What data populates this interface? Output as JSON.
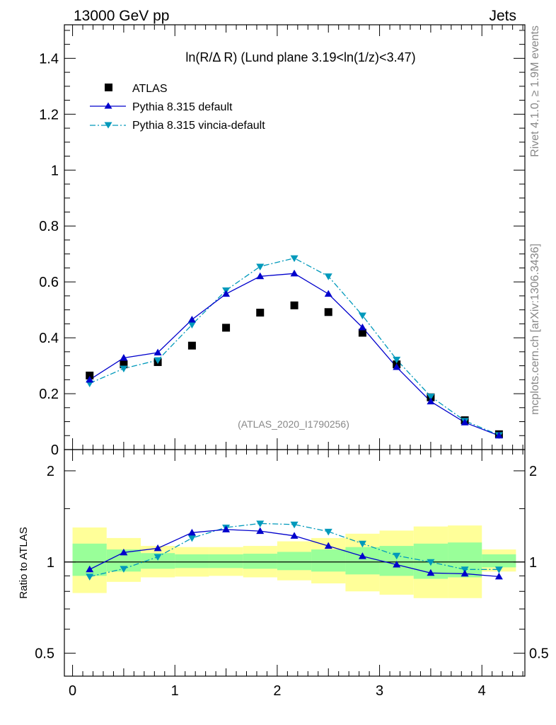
{
  "header": {
    "left_label": "13000 GeV pp",
    "right_label": "Jets"
  },
  "side_text": {
    "rivet": "Rivet 4.1.0, ≥ 1.9M events",
    "mcplots": "mcplots.cern.ch [arXiv:1306.3436]"
  },
  "colors": {
    "data": "#000000",
    "pythia_default": "#0000cc",
    "pythia_vincia": "#0099bb",
    "band_inner": "#99ff99",
    "band_outer": "#ffff99"
  },
  "chart_data": [
    {
      "type": "line",
      "panel": "main",
      "title": "ln(R/Δ R) (Lund plane 3.19<ln(1/z)<3.47)",
      "analysis_tag": "(ATLAS_2020_I1790256)",
      "xlabel": "",
      "ylabel": "",
      "xlim": [
        -0.08,
        4.42
      ],
      "ylim": [
        0,
        1.52
      ],
      "yticks": [
        0,
        0.2,
        0.4,
        0.6,
        0.8,
        1,
        1.2,
        1.4
      ],
      "ytick_labels": [
        "0",
        "0.2",
        "0.4",
        "0.6",
        "0.8",
        "1",
        "1.2",
        "1.4"
      ],
      "legend_position": "top-left",
      "x": [
        0.167,
        0.5,
        0.833,
        1.167,
        1.5,
        1.833,
        2.167,
        2.5,
        2.833,
        3.167,
        3.5,
        3.833,
        4.167
      ],
      "series": [
        {
          "name": "ATLAS",
          "style": "markers",
          "values": [
            0.265,
            0.305,
            0.313,
            0.372,
            0.436,
            0.49,
            0.516,
            0.492,
            0.418,
            0.305,
            0.187,
            0.105,
            0.055
          ]
        },
        {
          "name": "Pythia 8.315 default",
          "style": "solid",
          "values": [
            0.25,
            0.328,
            0.347,
            0.465,
            0.557,
            0.62,
            0.63,
            0.557,
            0.437,
            0.295,
            0.172,
            0.097,
            0.05
          ]
        },
        {
          "name": "Pythia 8.315 vincia-default",
          "style": "dashdot",
          "values": [
            0.237,
            0.29,
            0.32,
            0.447,
            0.57,
            0.655,
            0.685,
            0.62,
            0.48,
            0.322,
            0.19,
            0.103,
            0.052
          ]
        }
      ]
    },
    {
      "type": "line",
      "panel": "ratio",
      "ylabel": "Ratio to ATLAS",
      "xlim": [
        -0.08,
        4.42
      ],
      "ylim": [
        0.42,
        2.35
      ],
      "yscale": "log",
      "yticks": [
        0.5,
        1,
        2
      ],
      "ytick_labels": [
        "0.5",
        "1",
        "2"
      ],
      "xticks": [
        0,
        1,
        2,
        3,
        4
      ],
      "xtick_labels": [
        "0",
        "1",
        "2",
        "3",
        "4"
      ],
      "bin_edges": [
        0,
        0.333,
        0.667,
        1,
        1.333,
        1.667,
        2,
        2.333,
        2.667,
        3,
        3.333,
        3.667,
        4,
        4.333
      ],
      "band_outer": [
        [
          0.79,
          1.3
        ],
        [
          0.86,
          1.2
        ],
        [
          0.89,
          1.13
        ],
        [
          0.895,
          1.12
        ],
        [
          0.9,
          1.12
        ],
        [
          0.89,
          1.13
        ],
        [
          0.87,
          1.17
        ],
        [
          0.85,
          1.2
        ],
        [
          0.8,
          1.24
        ],
        [
          0.78,
          1.27
        ],
        [
          0.76,
          1.31
        ],
        [
          0.76,
          1.32
        ],
        [
          0.93,
          1.1
        ]
      ],
      "band_inner": [
        [
          0.9,
          1.15
        ],
        [
          0.93,
          1.1
        ],
        [
          0.95,
          1.07
        ],
        [
          0.955,
          1.06
        ],
        [
          0.955,
          1.06
        ],
        [
          0.95,
          1.065
        ],
        [
          0.94,
          1.08
        ],
        [
          0.93,
          1.1
        ],
        [
          0.91,
          1.12
        ],
        [
          0.9,
          1.13
        ],
        [
          0.88,
          1.15
        ],
        [
          0.89,
          1.16
        ],
        [
          0.96,
          1.06
        ]
      ],
      "x": [
        0.167,
        0.5,
        0.833,
        1.167,
        1.5,
        1.833,
        2.167,
        2.5,
        2.833,
        3.167,
        3.5,
        3.833,
        4.167
      ],
      "series": [
        {
          "name": "Pythia 8.315 default",
          "style": "solid",
          "values": [
            0.945,
            1.075,
            1.11,
            1.25,
            1.28,
            1.265,
            1.22,
            1.13,
            1.045,
            0.98,
            0.92,
            0.915,
            0.895
          ]
        },
        {
          "name": "Pythia 8.315 vincia-default",
          "style": "dashdot",
          "values": [
            0.895,
            0.95,
            1.04,
            1.2,
            1.3,
            1.34,
            1.33,
            1.26,
            1.15,
            1.05,
            1.0,
            0.945,
            0.945
          ]
        }
      ]
    }
  ]
}
